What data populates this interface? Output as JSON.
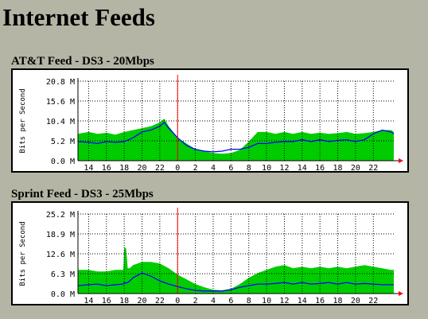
{
  "page": {
    "title": "Internet Feeds"
  },
  "colors": {
    "background": "#b5b5a5",
    "inbound": "#00cc00",
    "outbound": "#0000ff",
    "now_marker": "#ff0000"
  },
  "chart_data": [
    {
      "type": "area",
      "title": "AT&T Feed - DS3 - 20Mbps",
      "ylabel": "Bits per Second",
      "ylim": [
        0,
        20.8
      ],
      "yticks": [
        "0.0 M",
        "5.2 M",
        "10.4 M",
        "15.6 M",
        "20.8 M"
      ],
      "xticks": [
        "14",
        "16",
        "18",
        "20",
        "22",
        "0",
        "2",
        "4",
        "6",
        "8",
        "10",
        "12",
        "14",
        "16",
        "18",
        "20",
        "22"
      ],
      "grid": true,
      "x": [
        12.8,
        14,
        15,
        16,
        17,
        18,
        19,
        20,
        21,
        22,
        22.5,
        23,
        24,
        25,
        26,
        27,
        28,
        29,
        30,
        31,
        32,
        33,
        34,
        35,
        36,
        37,
        38,
        39,
        40,
        41,
        42,
        43,
        44,
        45,
        46,
        47,
        48,
        48.3
      ],
      "series": [
        {
          "values": [
            7,
            7.5,
            7,
            7.3,
            6.8,
            7.5,
            8,
            8.5,
            9,
            10,
            11,
            9,
            6,
            4.5,
            3,
            2.5,
            2,
            1.8,
            2,
            2.8,
            5,
            7.5,
            7.5,
            7,
            7.5,
            7,
            7.5,
            7,
            7.3,
            7,
            7.2,
            7.5,
            7,
            7.2,
            7.5,
            8,
            8,
            7.5
          ]
        },
        {
          "values": [
            5,
            4.8,
            4.5,
            5,
            4.8,
            5,
            6,
            7.5,
            8,
            9,
            10,
            8.5,
            6,
            4,
            3,
            2.5,
            2.3,
            2.5,
            3,
            3,
            3.5,
            4.5,
            4.5,
            4.8,
            5,
            5,
            5.5,
            5,
            5.5,
            5,
            5.3,
            5.5,
            5,
            5.5,
            7,
            8,
            7.5,
            7
          ]
        }
      ]
    },
    {
      "type": "area",
      "title": "Sprint Feed - DS3 - 25Mbps",
      "ylabel": "Bits per Second",
      "ylim": [
        0,
        25.2
      ],
      "yticks": [
        "0.0 M",
        "6.3 M",
        "12.6 M",
        "18.9 M",
        "25.2 M"
      ],
      "xticks": [
        "14",
        "16",
        "18",
        "20",
        "22",
        "0",
        "2",
        "4",
        "6",
        "8",
        "10",
        "12",
        "14",
        "16",
        "18",
        "20",
        "22"
      ],
      "grid": true,
      "x": [
        12.8,
        14,
        15,
        16,
        17,
        17.9,
        18,
        18.2,
        18.4,
        18.6,
        19,
        20,
        21,
        22,
        23,
        24,
        25,
        26,
        27,
        28,
        29,
        30,
        31,
        32,
        33,
        34,
        35,
        36,
        37,
        38,
        39,
        40,
        41,
        42,
        43,
        44,
        45,
        46,
        47,
        48,
        48.3
      ],
      "series": [
        {
          "values": [
            7.5,
            7.5,
            7,
            7,
            7.5,
            7.5,
            14.5,
            14.5,
            8,
            8,
            9,
            10,
            10,
            9.5,
            8,
            6,
            4.5,
            3,
            2,
            1.2,
            1,
            1.5,
            3,
            5,
            6.5,
            7.5,
            8.5,
            9,
            8,
            8.5,
            8,
            8.5,
            8,
            8.5,
            8,
            8.5,
            9,
            8.5,
            8,
            7.5,
            7.5
          ]
        },
        {
          "values": [
            2.5,
            2.8,
            3,
            2.5,
            2.8,
            3,
            3.5,
            3.3,
            3.5,
            4,
            5,
            6.5,
            5.5,
            4,
            3,
            2.2,
            1.5,
            1,
            0.8,
            0.8,
            0.8,
            1.2,
            2,
            2.5,
            3,
            3,
            3.2,
            3.5,
            3,
            3.5,
            3,
            3.2,
            3.5,
            3,
            3.5,
            3,
            3.2,
            3,
            2.8,
            2.8,
            2.8
          ]
        }
      ]
    }
  ]
}
